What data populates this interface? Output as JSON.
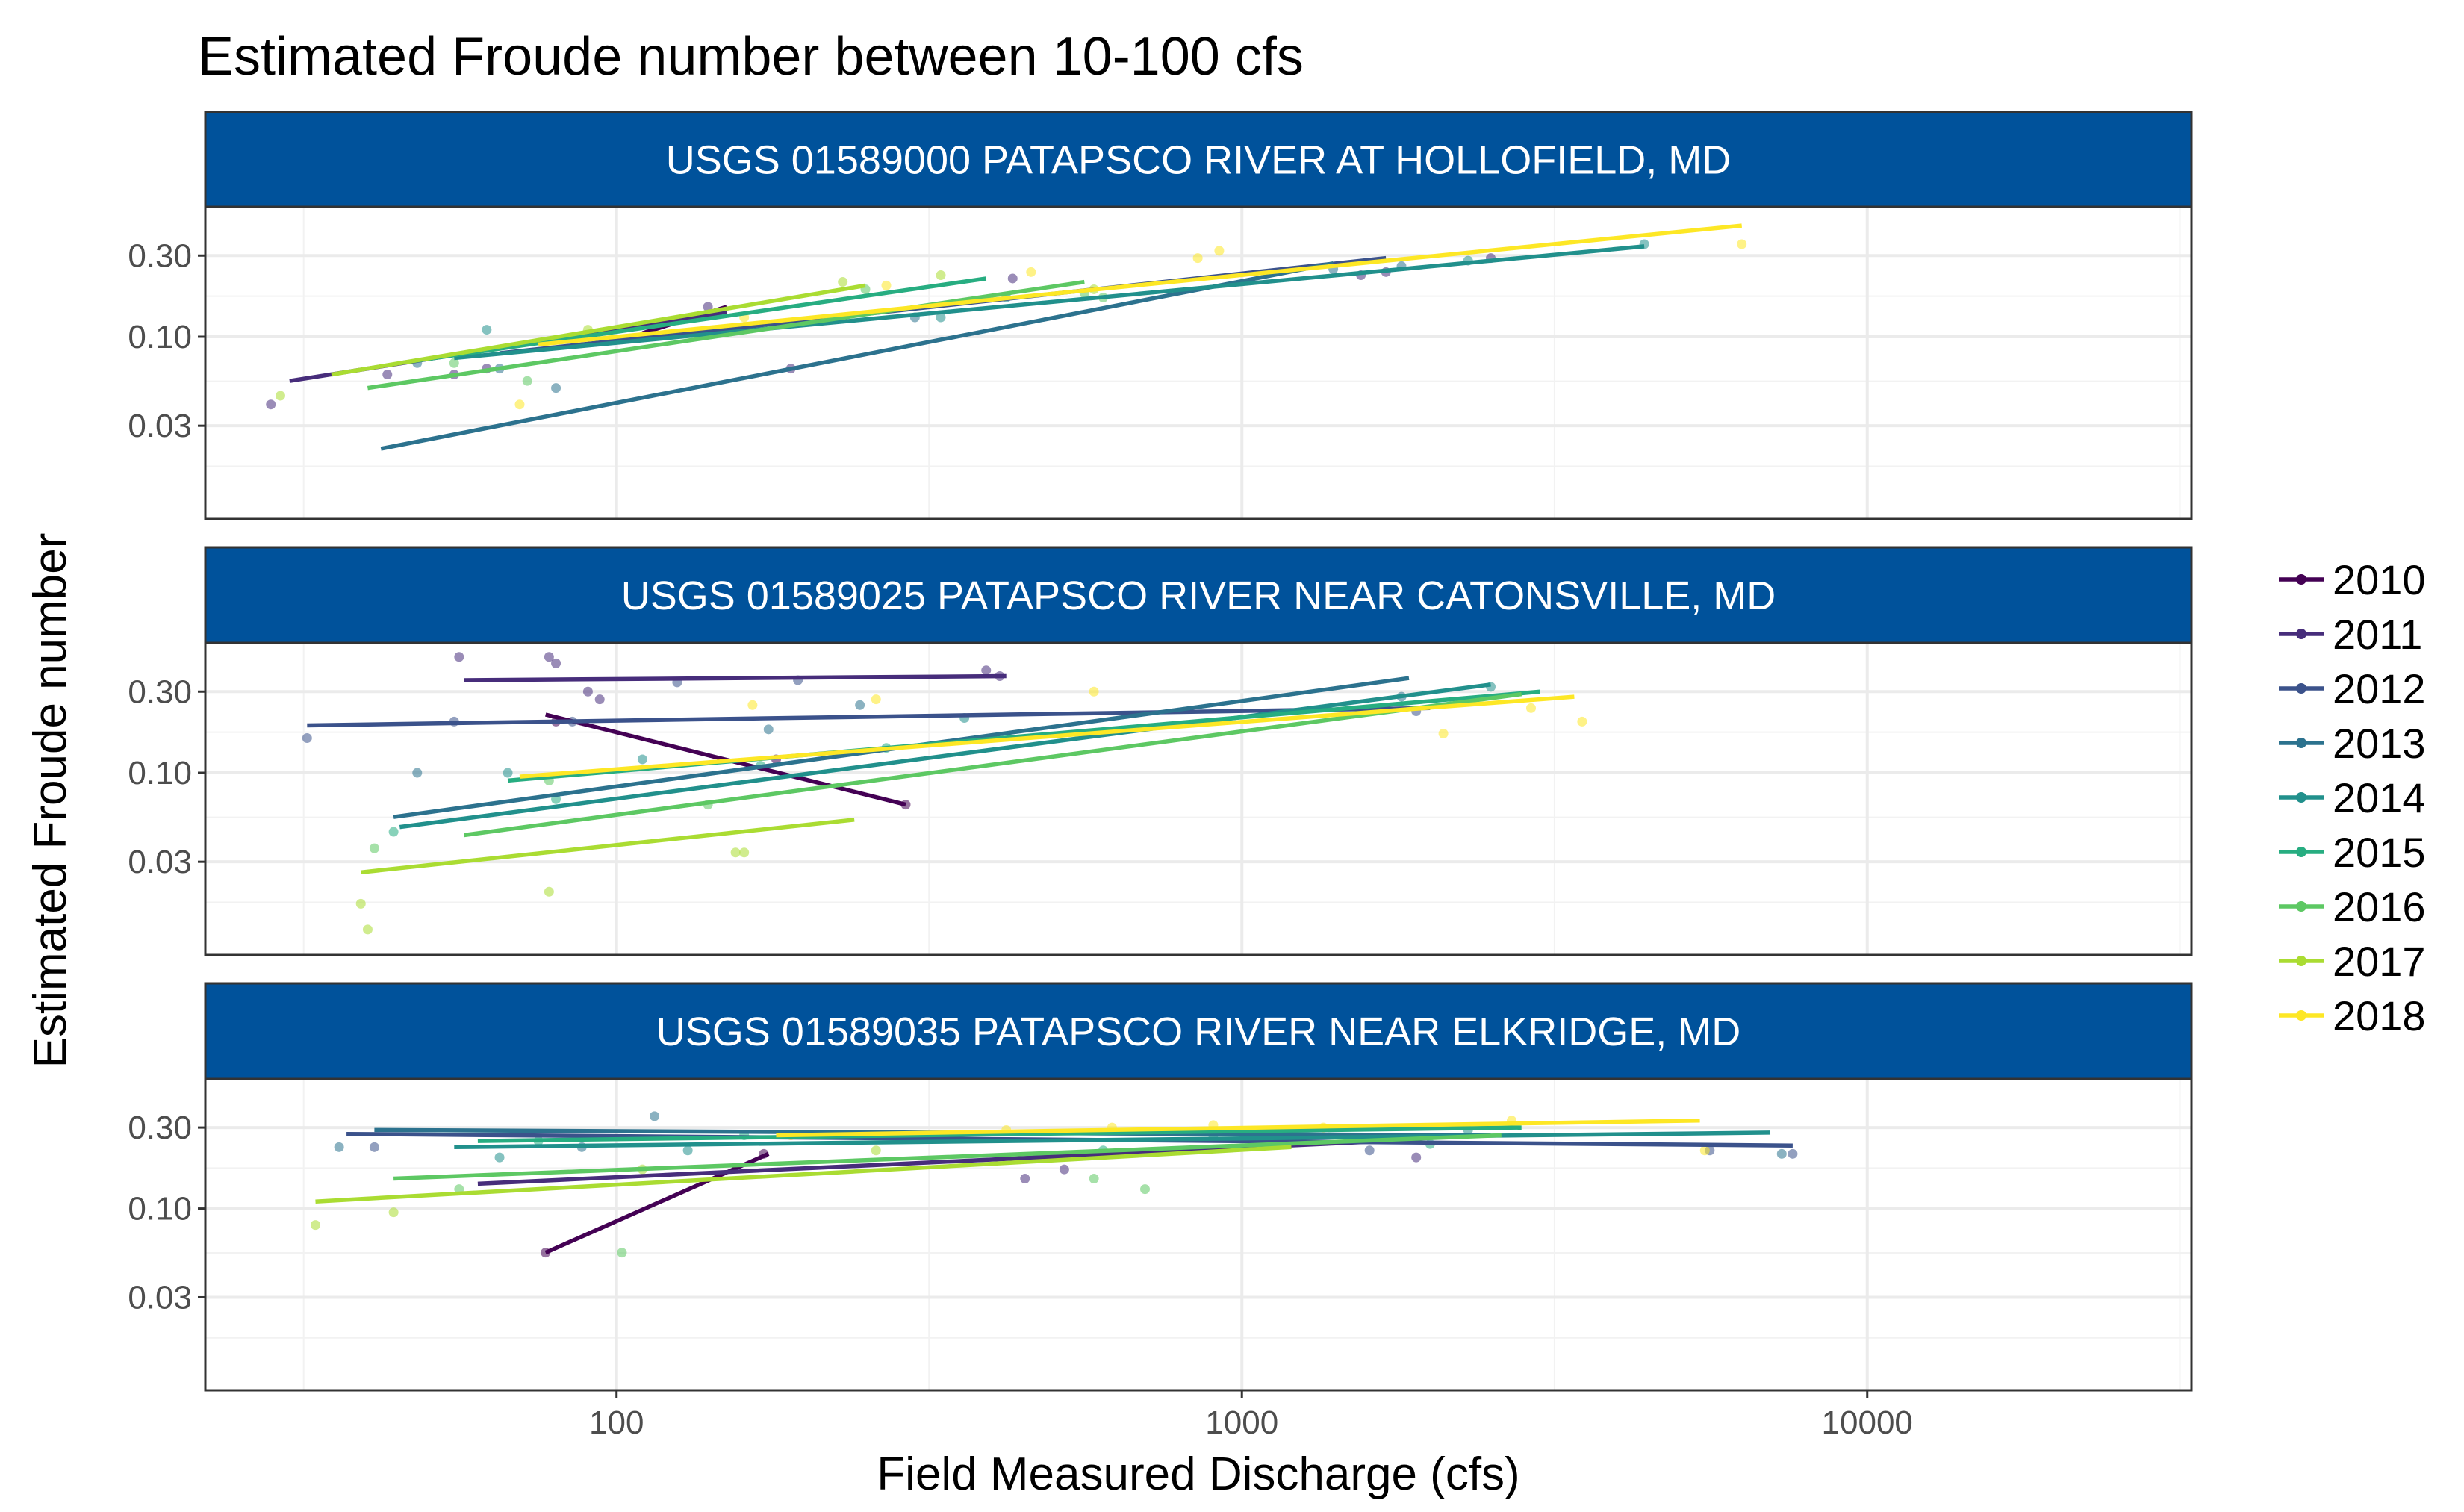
{
  "chart_data": {
    "type": "scatter",
    "title": "Estimated Froude number between 10-100 cfs",
    "xlabel": "Field Measured Discharge (cfs)",
    "ylabel": "Estimated Froude number",
    "x_scale": "log10",
    "y_scale": "log10",
    "xlim": [
      22,
      33000
    ],
    "ylim": [
      0.0085,
      0.58
    ],
    "x_ticks": [
      100,
      1000,
      10000
    ],
    "x_tick_labels": [
      "100",
      "1000",
      "10000"
    ],
    "y_ticks": [
      0.03,
      0.1,
      0.3
    ],
    "y_tick_labels": [
      "0.03",
      "0.10",
      "0.30"
    ],
    "grid": true,
    "legend_position": "right",
    "legend_entries": [
      "2010",
      "2011",
      "2012",
      "2013",
      "2014",
      "2015",
      "2016",
      "2017",
      "2018"
    ],
    "colors": {
      "2010": "#440154",
      "2011": "#472D7B",
      "2012": "#3B528B",
      "2013": "#2C728E",
      "2014": "#21908C",
      "2015": "#27AD81",
      "2016": "#5DC863",
      "2017": "#AADC32",
      "2018": "#FDE725"
    },
    "panels": [
      {
        "strip": "USGS 01589000 PATAPSCO RIVER AT HOLLOFIELD, MD",
        "fits": [
          {
            "year": "2010",
            "x": [
              110,
              150
            ],
            "y": [
              0.105,
              0.15
            ]
          },
          {
            "year": "2011",
            "x": [
              30,
              150
            ],
            "y": [
              0.055,
              0.14
            ]
          },
          {
            "year": "2012",
            "x": [
              65,
              1700
            ],
            "y": [
              0.08,
              0.29
            ]
          },
          {
            "year": "2013",
            "x": [
              42,
              1400
            ],
            "y": [
              0.022,
              0.27
            ]
          },
          {
            "year": "2014",
            "x": [
              55,
              4400
            ],
            "y": [
              0.075,
              0.34
            ]
          },
          {
            "year": "2015",
            "x": [
              45,
              390
            ],
            "y": [
              0.07,
              0.22
            ]
          },
          {
            "year": "2016",
            "x": [
              40,
              560
            ],
            "y": [
              0.05,
              0.21
            ]
          },
          {
            "year": "2017",
            "x": [
              35,
              250
            ],
            "y": [
              0.06,
              0.2
            ]
          },
          {
            "year": "2018",
            "x": [
              75,
              6300
            ],
            "y": [
              0.09,
              0.45
            ]
          }
        ],
        "points": [
          {
            "year": "2011",
            "x": [
              28,
              43,
              55,
              62,
              140,
              190,
              430,
              1550,
              1700,
              2500
            ],
            "y": [
              0.04,
              0.06,
              0.06,
              0.065,
              0.15,
              0.065,
              0.22,
              0.23,
              0.24,
              0.29
            ]
          },
          {
            "year": "2013",
            "x": [
              48,
              65,
              80,
              300,
              1400,
              1800
            ],
            "y": [
              0.07,
              0.065,
              0.05,
              0.13,
              0.25,
              0.26
            ]
          },
          {
            "year": "2014",
            "x": [
              62,
              110,
              330,
              420,
              2300,
              4400
            ],
            "y": [
              0.11,
              0.1,
              0.13,
              0.17,
              0.28,
              0.35
            ]
          },
          {
            "year": "2016",
            "x": [
              55,
              72,
              250,
              560,
              600
            ],
            "y": [
              0.07,
              0.055,
              0.19,
              0.18,
              0.17
            ]
          },
          {
            "year": "2017",
            "x": [
              29,
              90,
              230,
              330,
              580
            ],
            "y": [
              0.045,
              0.11,
              0.21,
              0.23,
              0.19
            ]
          },
          {
            "year": "2018",
            "x": [
              70,
              160,
              270,
              460,
              850,
              920,
              6300
            ],
            "y": [
              0.04,
              0.13,
              0.2,
              0.24,
              0.29,
              0.32,
              0.35
            ]
          }
        ]
      },
      {
        "strip": "USGS 01589025 PATAPSCO RIVER NEAR CATONSVILLE, MD",
        "fits": [
          {
            "year": "2010",
            "x": [
              77,
              290
            ],
            "y": [
              0.22,
              0.065
            ]
          },
          {
            "year": "2011",
            "x": [
              57,
              420
            ],
            "y": [
              0.35,
              0.37
            ]
          },
          {
            "year": "2012",
            "x": [
              32,
              2000
            ],
            "y": [
              0.19,
              0.24
            ]
          },
          {
            "year": "2013",
            "x": [
              44,
              1850
            ],
            "y": [
              0.055,
              0.36
            ]
          },
          {
            "year": "2014",
            "x": [
              45,
              2500
            ],
            "y": [
              0.048,
              0.33
            ]
          },
          {
            "year": "2015",
            "x": [
              67,
              3000
            ],
            "y": [
              0.09,
              0.3
            ]
          },
          {
            "year": "2016",
            "x": [
              57,
              2800
            ],
            "y": [
              0.043,
              0.29
            ]
          },
          {
            "year": "2017",
            "x": [
              39,
              240
            ],
            "y": [
              0.026,
              0.053
            ]
          },
          {
            "year": "2018",
            "x": [
              70,
              3400
            ],
            "y": [
              0.095,
              0.28
            ]
          }
        ],
        "points": [
          {
            "year": "2010",
            "x": [
              80,
              180,
              290
            ],
            "y": [
              0.2,
              0.12,
              0.065
            ]
          },
          {
            "year": "2011",
            "x": [
              56,
              78,
              80,
              90,
              94,
              390,
              410
            ],
            "y": [
              0.48,
              0.48,
              0.44,
              0.3,
              0.27,
              0.4,
              0.37
            ]
          },
          {
            "year": "2012",
            "x": [
              32,
              55,
              85,
              125,
              195,
              1900
            ],
            "y": [
              0.16,
              0.2,
              0.2,
              0.34,
              0.35,
              0.23
            ]
          },
          {
            "year": "2013",
            "x": [
              48,
              175,
              245,
              1800
            ],
            "y": [
              0.1,
              0.18,
              0.25,
              0.28
            ]
          },
          {
            "year": "2014",
            "x": [
              67,
              110,
              360,
              2500
            ],
            "y": [
              0.1,
              0.12,
              0.21,
              0.32
            ]
          },
          {
            "year": "2015",
            "x": [
              44,
              80,
              170,
              270
            ],
            "y": [
              0.045,
              0.07,
              0.11,
              0.14
            ]
          },
          {
            "year": "2016",
            "x": [
              41,
              78,
              140
            ],
            "y": [
              0.036,
              0.09,
              0.065
            ]
          },
          {
            "year": "2017",
            "x": [
              39,
              40,
              78,
              155,
              160
            ],
            "y": [
              0.017,
              0.012,
              0.02,
              0.034,
              0.034
            ]
          },
          {
            "year": "2018",
            "x": [
              165,
              260,
              580,
              2100,
              2900,
              3500
            ],
            "y": [
              0.25,
              0.27,
              0.3,
              0.17,
              0.24,
              0.2
            ]
          }
        ]
      },
      {
        "strip": "USGS 01589035 PATAPSCO RIVER NEAR ELKRIDGE, MD",
        "fits": [
          {
            "year": "2010",
            "x": [
              77,
              175
            ],
            "y": [
              0.055,
              0.21
            ]
          },
          {
            "year": "2011",
            "x": [
              60,
              1700
            ],
            "y": [
              0.14,
              0.25
            ]
          },
          {
            "year": "2012",
            "x": [
              37,
              7600
            ],
            "y": [
              0.275,
              0.235
            ]
          },
          {
            "year": "2013",
            "x": [
              41,
              2500
            ],
            "y": [
              0.29,
              0.27
            ]
          },
          {
            "year": "2014",
            "x": [
              55,
              7000
            ],
            "y": [
              0.23,
              0.28
            ]
          },
          {
            "year": "2015",
            "x": [
              60,
              2800
            ],
            "y": [
              0.25,
              0.3
            ]
          },
          {
            "year": "2016",
            "x": [
              44,
              2600
            ],
            "y": [
              0.15,
              0.27
            ]
          },
          {
            "year": "2017",
            "x": [
              33,
              1200
            ],
            "y": [
              0.11,
              0.23
            ]
          },
          {
            "year": "2018",
            "x": [
              180,
              5400
            ],
            "y": [
              0.27,
              0.33
            ]
          }
        ],
        "points": [
          {
            "year": "2010",
            "x": [
              77,
              172
            ],
            "y": [
              0.055,
              0.21
            ]
          },
          {
            "year": "2011",
            "x": [
              450,
              520,
              1900
            ],
            "y": [
              0.15,
              0.17,
              0.2
            ]
          },
          {
            "year": "2012",
            "x": [
              41,
              1600,
              5600,
              7600
            ],
            "y": [
              0.23,
              0.22,
              0.22,
              0.21
            ]
          },
          {
            "year": "2013",
            "x": [
              36,
              88,
              115,
              7300
            ],
            "y": [
              0.23,
              0.23,
              0.35,
              0.21
            ]
          },
          {
            "year": "2014",
            "x": [
              65,
              130,
              900,
              2300
            ],
            "y": [
              0.2,
              0.22,
              0.27,
              0.29
            ]
          },
          {
            "year": "2015",
            "x": [
              75,
              160,
              600,
              2000
            ],
            "y": [
              0.25,
              0.27,
              0.22,
              0.24
            ]
          },
          {
            "year": "2016",
            "x": [
              56,
              102,
              580,
              700
            ],
            "y": [
              0.13,
              0.055,
              0.15,
              0.13
            ]
          },
          {
            "year": "2017",
            "x": [
              33,
              44,
              110,
              260
            ],
            "y": [
              0.08,
              0.095,
              0.17,
              0.22
            ]
          },
          {
            "year": "2018",
            "x": [
              190,
              420,
              620,
              900,
              1350,
              2700,
              5500
            ],
            "y": [
              0.27,
              0.29,
              0.3,
              0.31,
              0.3,
              0.33,
              0.22
            ]
          }
        ]
      }
    ]
  }
}
